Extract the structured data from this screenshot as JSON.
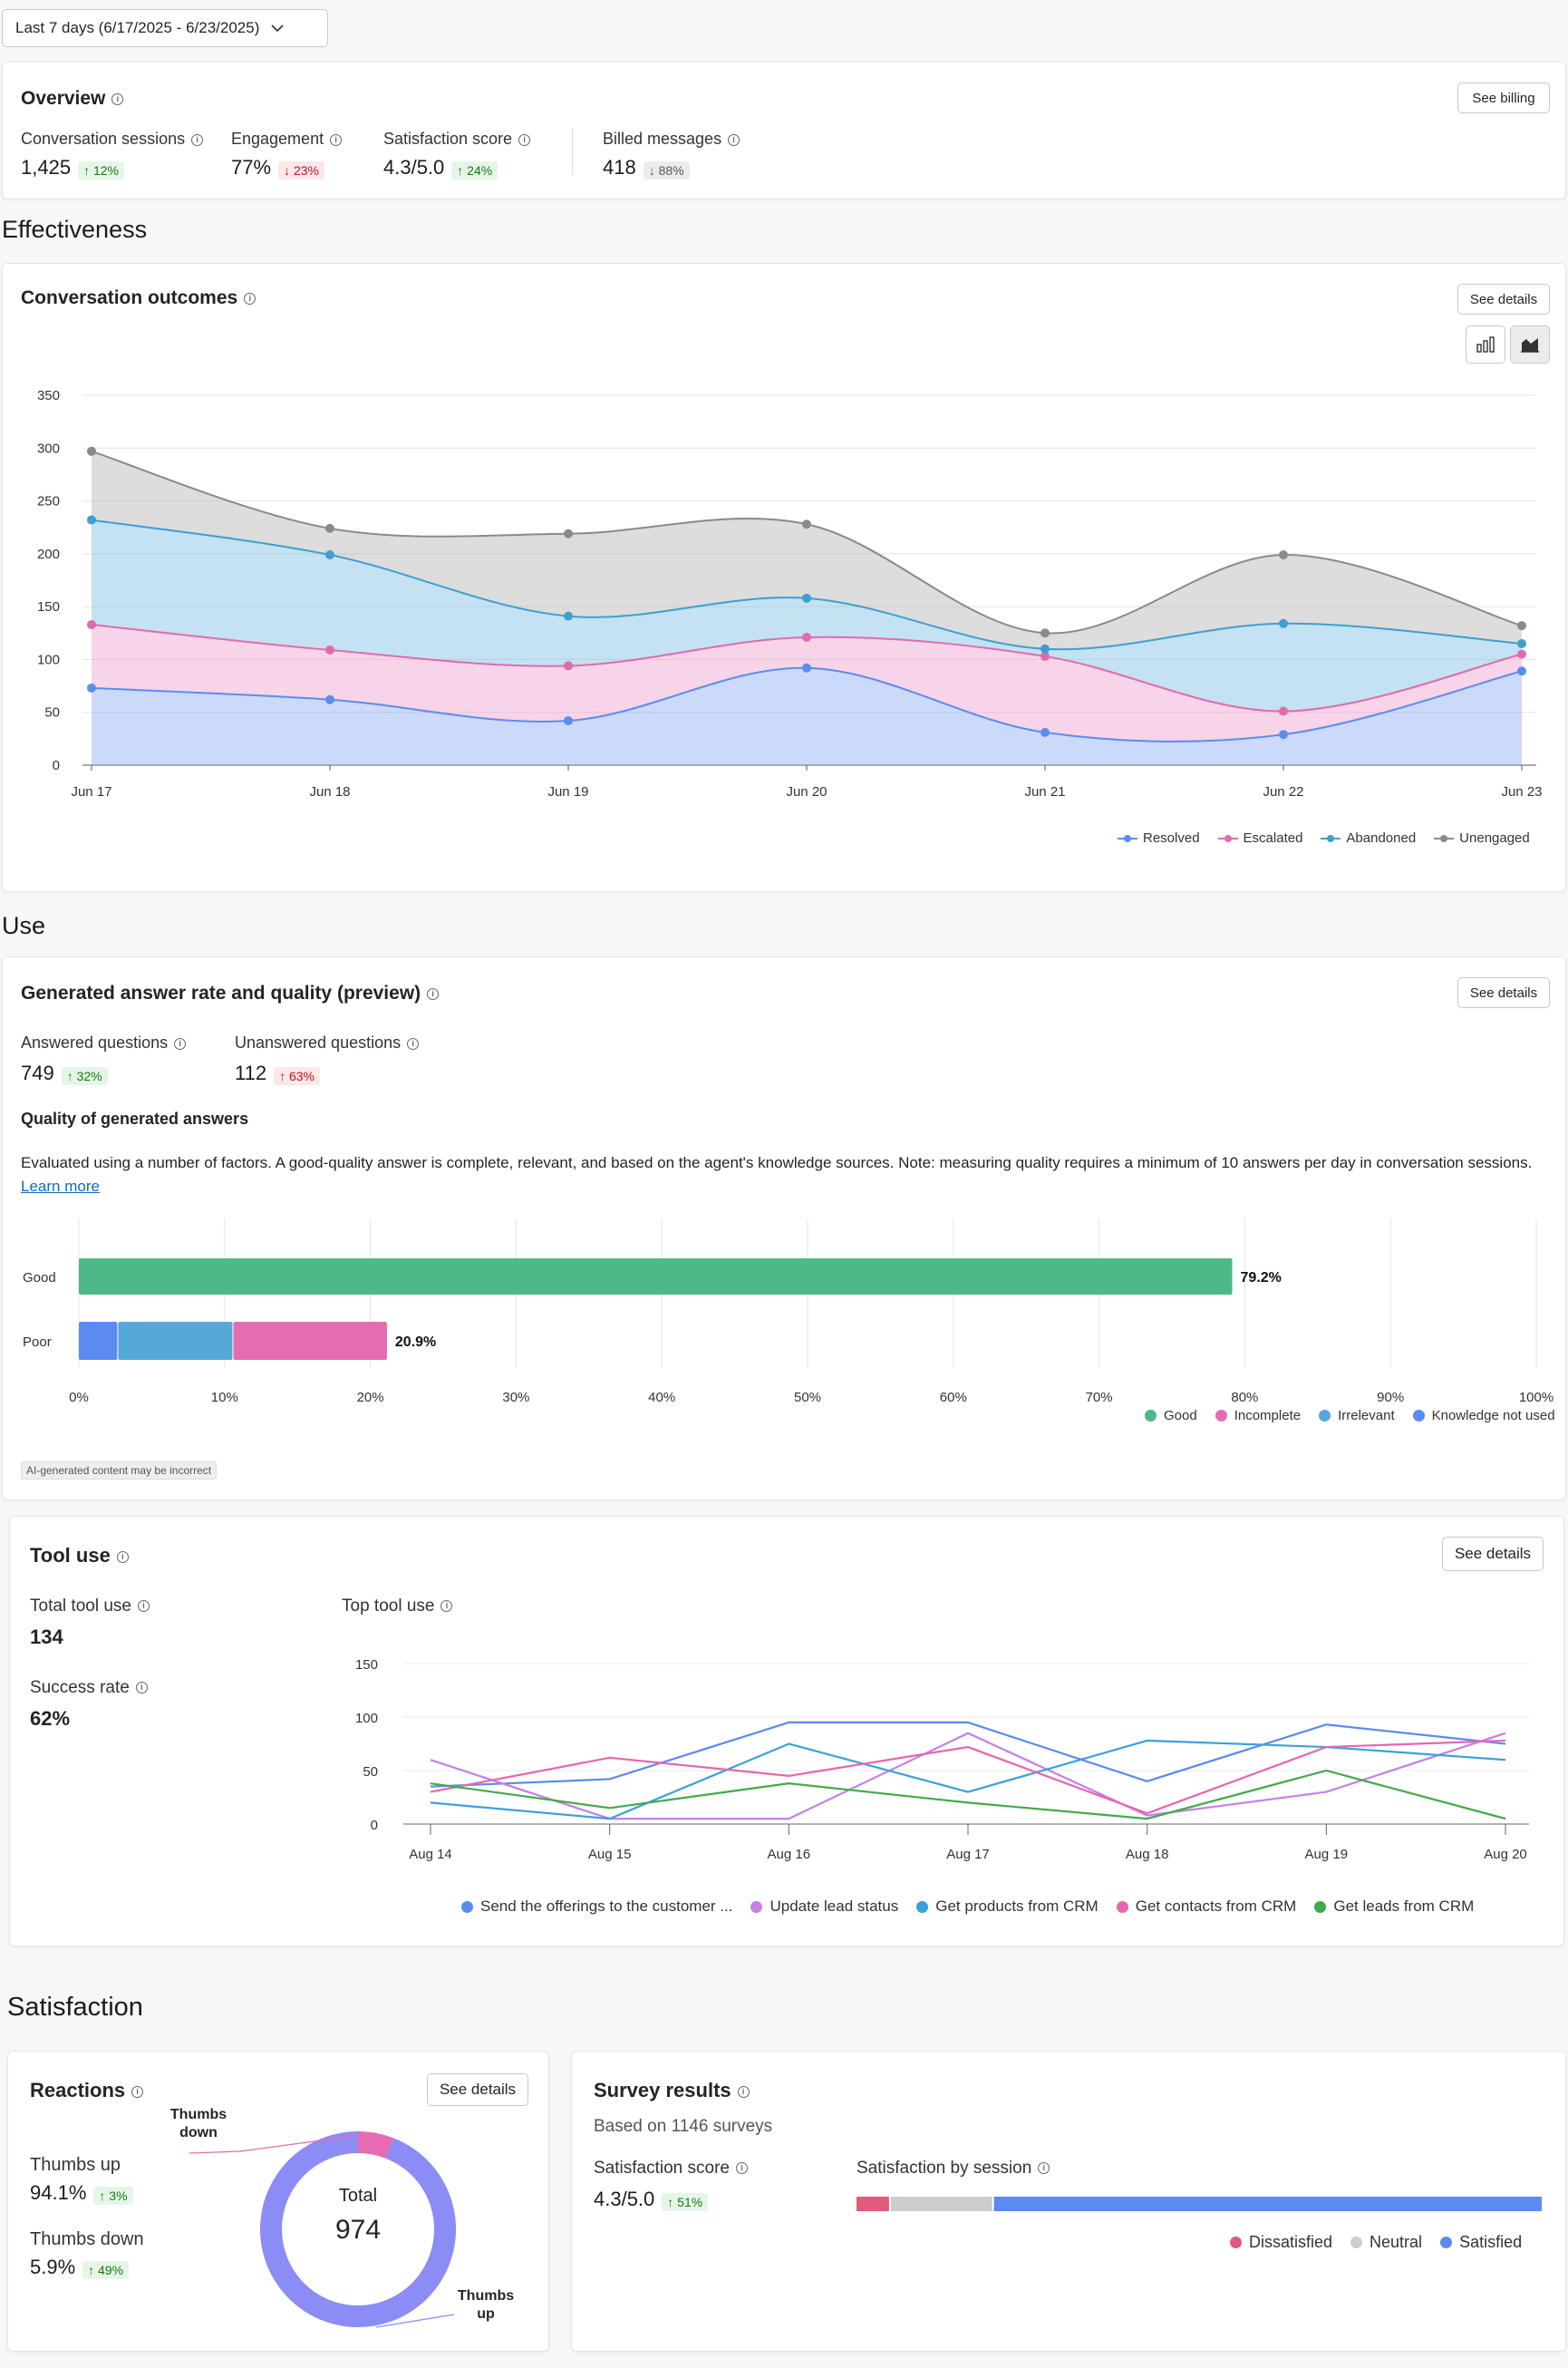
{
  "date_range": "Last 7 days (6/17/2025 - 6/23/2025)",
  "overview": {
    "title": "Overview",
    "see_billing": "See billing",
    "metrics": [
      {
        "label": "Conversation sessions",
        "value": "1,425",
        "change": "12%",
        "direction": "up",
        "tone": "good"
      },
      {
        "label": "Engagement",
        "value": "77%",
        "change": "23%",
        "direction": "down",
        "tone": "bad"
      },
      {
        "label": "Satisfaction score",
        "value": "4.3/5.0",
        "change": "24%",
        "direction": "up",
        "tone": "good"
      },
      {
        "label": "Billed messages",
        "value": "418",
        "change": "88%",
        "direction": "down",
        "tone": "neutral"
      }
    ]
  },
  "sections": {
    "effectiveness": "Effectiveness",
    "use": "Use",
    "satisfaction": "Satisfaction"
  },
  "outcomes": {
    "title": "Conversation outcomes",
    "see_details": "See details"
  },
  "answers": {
    "title": "Generated answer rate and quality (preview)",
    "see_details": "See details",
    "answered_label": "Answered questions",
    "answered_value": "749",
    "answered_change": "32%",
    "unanswered_label": "Unanswered questions",
    "unanswered_value": "112",
    "unanswered_change": "63%",
    "quality_title": "Quality of generated answers",
    "description": "Evaluated using a number of factors. A good-quality answer is complete, relevant, and based on the agent's knowledge sources. Note: measuring quality requires a minimum of 10 answers per day in conversation sessions.",
    "learn_more": "Learn more",
    "ai_note": "AI-generated content may be incorrect"
  },
  "tooluse": {
    "title": "Tool use",
    "see_details": "See details",
    "total_label": "Total tool use",
    "total_value": "134",
    "success_label": "Success rate",
    "success_value": "62%",
    "top_label": "Top tool use"
  },
  "reactions": {
    "title": "Reactions",
    "see_details": "See details",
    "up_label": "Thumbs up",
    "up_value": "94.1%",
    "up_change": "3%",
    "down_label": "Thumbs down",
    "down_value": "5.9%",
    "down_change": "49%",
    "total_label": "Total",
    "total_value": "974",
    "callout_down": "Thumbs down",
    "callout_up": "Thumbs up"
  },
  "survey": {
    "title": "Survey results",
    "based_on": "Based on 1146 surveys",
    "score_label": "Satisfaction score",
    "score_value": "4.3/5.0",
    "score_change": "51%",
    "by_session_label": "Satisfaction by session"
  },
  "colors": {
    "resolved": "#5b8def",
    "escalated": "#e06ab0",
    "abandoned": "#3f9fd1",
    "unengaged": "#8a8a8a",
    "good": "#4db888",
    "incomplete": "#e56bb3",
    "irrelevant": "#56a8d6",
    "knowledge": "#5b8af0",
    "dissatisfied": "#e15a7c",
    "neutral": "#cccccc",
    "satisfied": "#5b8af0"
  },
  "chart_data": [
    {
      "type": "area",
      "categories": [
        "Jun 17",
        "Jun 18",
        "Jun 19",
        "Jun 20",
        "Jun 21",
        "Jun 22",
        "Jun 23"
      ],
      "ylim": [
        0,
        350
      ],
      "yticks": [
        0,
        50,
        100,
        150,
        200,
        250,
        300,
        350
      ],
      "stacked": true,
      "series": [
        {
          "name": "Resolved",
          "values": [
            73,
            62,
            42,
            92,
            31,
            29,
            89
          ]
        },
        {
          "name": "Escalated",
          "values": [
            60,
            47,
            52,
            29,
            72,
            22,
            16
          ]
        },
        {
          "name": "Abandoned",
          "values": [
            99,
            90,
            47,
            37,
            7,
            83,
            10
          ]
        },
        {
          "name": "Unengaged",
          "values": [
            65,
            25,
            78,
            70,
            15,
            65,
            17
          ]
        }
      ]
    },
    {
      "type": "bar",
      "orientation": "horizontal",
      "stacked": true,
      "categories": [
        "Good",
        "Poor"
      ],
      "xlim": [
        0,
        100
      ],
      "xticks": [
        "0%",
        "10%",
        "20%",
        "30%",
        "40%",
        "50%",
        "60%",
        "70%",
        "80%",
        "90%",
        "100%"
      ],
      "totals": [
        "79.2%",
        "20.9%"
      ],
      "series": [
        {
          "name": "Good",
          "values": [
            79.2,
            0
          ]
        },
        {
          "name": "Knowledge not used",
          "values": [
            0,
            2.7
          ]
        },
        {
          "name": "Incomplete",
          "values": [
            0,
            10.6
          ]
        },
        {
          "name": "Irrelevant",
          "values": [
            0,
            7.9
          ]
        }
      ],
      "legend": [
        "Good",
        "Incomplete",
        "Irrelevant",
        "Knowledge not used"
      ]
    },
    {
      "type": "line",
      "categories": [
        "Aug 14",
        "Aug 15",
        "Aug 16",
        "Aug 17",
        "Aug 18",
        "Aug 19",
        "Aug 20"
      ],
      "ylim": [
        0,
        150
      ],
      "yticks": [
        0,
        50,
        100,
        150
      ],
      "series": [
        {
          "name": "Send the offerings to the customer ...",
          "color": "#5b8af0",
          "values": [
            35,
            42,
            95,
            95,
            40,
            93,
            75
          ]
        },
        {
          "name": "Update lead status",
          "color": "#c77ee8",
          "values": [
            60,
            5,
            5,
            85,
            8,
            30,
            85
          ]
        },
        {
          "name": "Get products from CRM",
          "color": "#3aa0d8",
          "values": [
            20,
            5,
            75,
            30,
            78,
            72,
            60
          ]
        },
        {
          "name": "Get contacts from CRM",
          "color": "#e666b0",
          "values": [
            30,
            62,
            45,
            72,
            10,
            72,
            78
          ]
        },
        {
          "name": "Get leads from CRM",
          "color": "#43aa4a",
          "values": [
            38,
            15,
            38,
            20,
            5,
            50,
            5
          ]
        }
      ]
    },
    {
      "type": "pie",
      "donut": true,
      "categories": [
        "Thumbs up",
        "Thumbs down"
      ],
      "values": [
        94.1,
        5.9
      ],
      "colors": [
        "#8b8cf5",
        "#e56bb3"
      ]
    },
    {
      "type": "bar",
      "orientation": "horizontal",
      "stacked": true,
      "categories": [
        "Satisfaction by session"
      ],
      "series": [
        {
          "name": "Dissatisfied",
          "values": [
            5
          ]
        },
        {
          "name": "Neutral",
          "values": [
            15
          ]
        },
        {
          "name": "Satisfied",
          "values": [
            80
          ]
        }
      ]
    }
  ]
}
